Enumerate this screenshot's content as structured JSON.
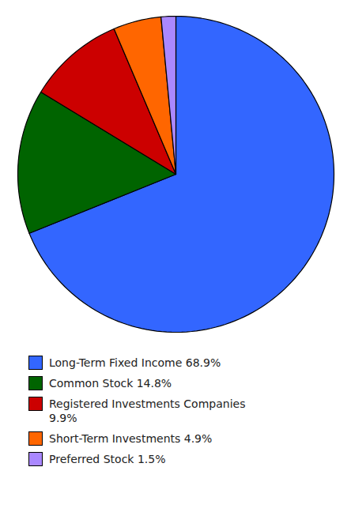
{
  "chart_data": {
    "type": "pie",
    "categories": [
      "Long-Term Fixed Income 68.9%",
      "Common Stock 14.8%",
      "Registered Investments Companies\n9.9%",
      "Short-Term Investments 4.9%",
      "Preferred Stock 1.5%"
    ],
    "values": [
      68.9,
      14.8,
      9.9,
      4.9,
      1.5
    ],
    "colors": [
      "#3366ff",
      "#006400",
      "#cc0000",
      "#ff6600",
      "#aa88ff"
    ],
    "legend": "bottom"
  }
}
